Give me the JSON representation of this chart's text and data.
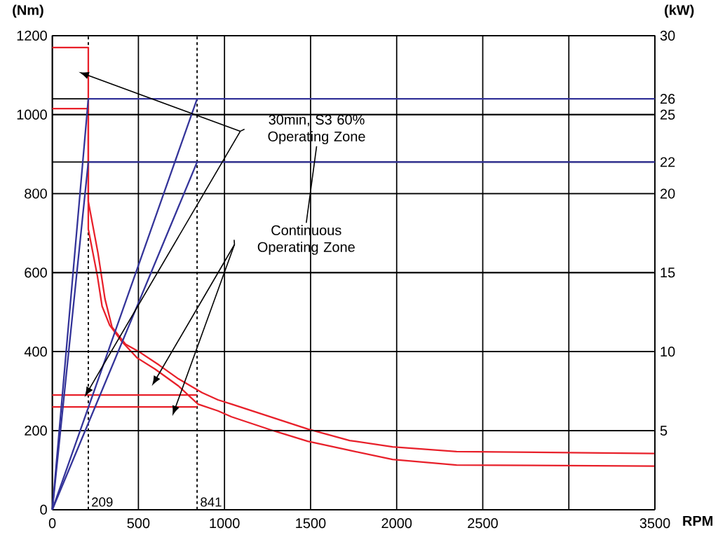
{
  "chart_data": {
    "type": "line",
    "xlabel": "RPM",
    "ylabel": "(Nm)",
    "y2label": "(kW)",
    "xlim": [
      0,
      3500
    ],
    "ylim": [
      0,
      1200
    ],
    "y2lim": [
      0,
      30
    ],
    "xticks": [
      0,
      500,
      1000,
      1500,
      2000,
      2500,
      {
        "value": 3000,
        "label": null
      },
      3500
    ],
    "yticks": [
      0,
      200,
      400,
      600,
      800,
      1000,
      1200
    ],
    "y2ticks": [
      5,
      10,
      15,
      20,
      22,
      25,
      26,
      30
    ],
    "grid": true,
    "series": [
      {
        "color": "#e8202a",
        "x": [
          0,
          209,
          209,
          265,
          306,
          347,
          425,
          503,
          620,
          733,
          870,
          962,
          1041,
          1483,
          1727,
          1976,
          2348,
          3500
        ],
        "values": [
          1170,
          1170,
          780,
          650,
          533,
          462,
          419,
          400,
          366,
          331,
          296,
          278,
          267,
          204,
          175,
          159,
          147,
          142
        ]
      },
      {
        "color": "#e8202a",
        "x": [
          0,
          209,
          209,
          262,
          289,
          333,
          401,
          493,
          596,
          733,
          846,
          962,
          1041,
          1282,
          1483,
          1727,
          1976,
          2348,
          3500
        ],
        "values": [
          1015,
          1015,
          710,
          591,
          515,
          467,
          427,
          384,
          356,
          313,
          267,
          250,
          235,
          200,
          173,
          150,
          127,
          113,
          110
        ]
      },
      {
        "color": "#e8202a",
        "x": [
          0,
          841
        ],
        "values": [
          290,
          290
        ]
      },
      {
        "color": "#e8202a",
        "x": [
          0,
          841
        ],
        "values": [
          260,
          260
        ]
      },
      {
        "color": "#333399",
        "axis": "y2",
        "x": [
          0,
          209,
          3500
        ],
        "values": [
          0,
          26,
          26
        ]
      },
      {
        "color": "#333399",
        "axis": "y2",
        "x": [
          0,
          209,
          3500
        ],
        "values": [
          0,
          22,
          22
        ]
      },
      {
        "color": "#333399",
        "axis": "y2",
        "x": [
          0,
          841
        ],
        "values": [
          0,
          26
        ]
      },
      {
        "color": "#333399",
        "axis": "y2",
        "x": [
          0,
          841
        ],
        "values": [
          0,
          22
        ]
      }
    ],
    "ref_lines": [
      {
        "axis": "x",
        "value": 209,
        "label": "209",
        "line_style": "dashed"
      },
      {
        "axis": "x",
        "value": 841,
        "label": "841",
        "line_style": "dashed"
      }
    ],
    "annotations": [
      "30min, S3 60% Operating Zone",
      "Continuous Operating Zone"
    ]
  }
}
